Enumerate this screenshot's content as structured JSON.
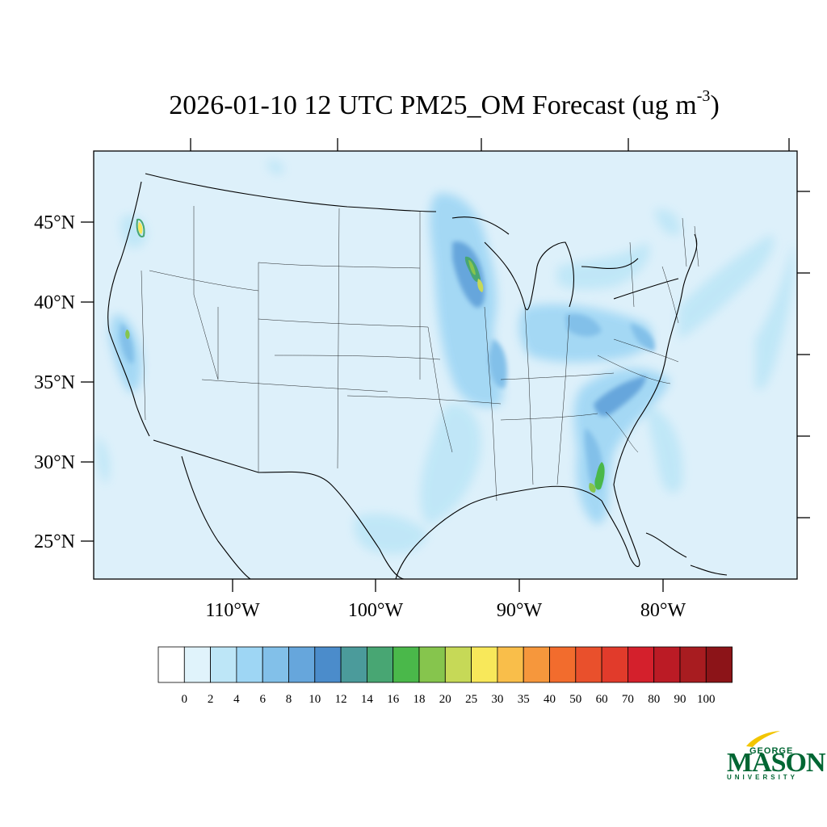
{
  "title": {
    "text": "2026-01-10 12 UTC PM25_OM Forecast (ug m",
    "superscript": "-3",
    "close": ")"
  },
  "map": {
    "projection": "lambert-conformal",
    "region": "CONUS",
    "background_color": "#ddf0fa",
    "lat_labels": [
      "45°N",
      "40°N",
      "35°N",
      "30°N",
      "25°N"
    ],
    "lon_labels": [
      "110°W",
      "100°W",
      "90°W",
      "80°W"
    ]
  },
  "colorbar": {
    "levels": [
      "0",
      "2",
      "4",
      "6",
      "8",
      "10",
      "12",
      "14",
      "16",
      "18",
      "20",
      "25",
      "30",
      "35",
      "40",
      "50",
      "60",
      "70",
      "80",
      "90",
      "100"
    ],
    "colors": [
      "#ffffff",
      "#e0f3fb",
      "#bde6f7",
      "#9ed6f4",
      "#82c0e9",
      "#66a6dc",
      "#4b8ccb",
      "#4b9b9b",
      "#48a673",
      "#4ab84a",
      "#86c54d",
      "#c6d957",
      "#f8e85a",
      "#f9be4a",
      "#f6973c",
      "#f26c2d",
      "#e9502c",
      "#e13b2b",
      "#d4202c",
      "#bb1b25",
      "#a81c20",
      "#8c1418"
    ]
  },
  "logo": {
    "line1": "GEORGE",
    "line2": "MASON",
    "line3": "UNIVERSITY",
    "color": "#006633",
    "accent": "#f2c500"
  }
}
